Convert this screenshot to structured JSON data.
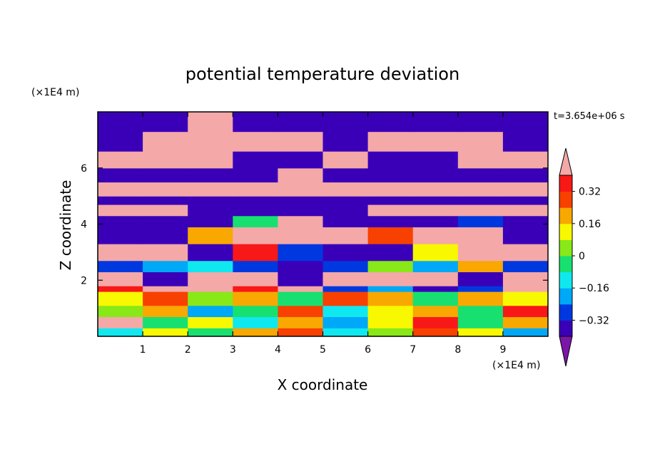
{
  "chart_data": {
    "type": "heatmap",
    "title": "potential temperature deviation",
    "xlabel": "X coordinate",
    "ylabel": "Z coordinate",
    "x_unit": "(×1E4 m)",
    "y_unit": "(×1E4 m)",
    "time_label": "t=3.654e+06 s",
    "xlim": [
      0,
      10
    ],
    "ylim": [
      0,
      8
    ],
    "x_ticks": [
      1,
      2,
      3,
      4,
      5,
      6,
      7,
      8,
      9
    ],
    "y_ticks": [
      2,
      4,
      6
    ],
    "colorbar": {
      "levels": [
        -0.4,
        -0.32,
        -0.24,
        -0.16,
        -0.08,
        0,
        0.08,
        0.16,
        0.24,
        0.32,
        0.4
      ],
      "labels": [
        "0.32",
        "0.16",
        "0",
        "−0.16",
        "−0.32"
      ],
      "label_values": [
        0.32,
        0.16,
        0,
        -0.16,
        -0.32
      ],
      "colors": [
        "#7a16a8",
        "#3a00b8",
        "#0038e0",
        "#00a8f8",
        "#10e8f0",
        "#18e070",
        "#88e818",
        "#f8f800",
        "#f8a800",
        "#f84000",
        "#f81818",
        "#f4a8a8"
      ],
      "extend": "both"
    },
    "bands": [
      {
        "z": [
          0.0,
          0.3
        ],
        "pattern": [
          -0.16,
          0.08,
          -0.08,
          0.16,
          0.24,
          -0.16,
          0.0,
          0.24,
          0.08,
          -0.24
        ]
      },
      {
        "z": [
          0.3,
          0.7
        ],
        "pattern": [
          0.4,
          -0.08,
          0.08,
          -0.16,
          0.16,
          -0.24,
          0.08,
          0.32,
          -0.08,
          0.16
        ]
      },
      {
        "z": [
          0.7,
          1.1
        ],
        "pattern": [
          0.0,
          0.16,
          -0.24,
          -0.08,
          0.24,
          -0.16,
          0.08,
          0.16,
          -0.08,
          0.32
        ]
      },
      {
        "z": [
          1.1,
          1.6
        ],
        "pattern": [
          0.08,
          0.24,
          0.0,
          0.16,
          -0.08,
          0.24,
          0.16,
          -0.08,
          0.16,
          0.08
        ]
      },
      {
        "z": [
          1.6,
          1.8
        ],
        "pattern": [
          0.32,
          0.4,
          0.4,
          0.32,
          0.4,
          -0.32,
          -0.24,
          -0.4,
          -0.32,
          0.4
        ]
      },
      {
        "z": [
          1.8,
          2.3
        ],
        "pattern": [
          0.4,
          -0.4,
          0.4,
          0.4,
          -0.4,
          0.4,
          0.4,
          0.4,
          -0.4,
          0.4
        ]
      },
      {
        "z": [
          2.3,
          2.7
        ],
        "pattern": [
          -0.32,
          -0.24,
          -0.16,
          -0.32,
          -0.4,
          -0.32,
          0.0,
          -0.24,
          0.16,
          -0.32
        ]
      },
      {
        "z": [
          2.7,
          3.3
        ],
        "pattern": [
          0.4,
          0.4,
          -0.4,
          0.32,
          -0.32,
          -0.4,
          -0.4,
          0.08,
          0.4,
          0.4
        ]
      },
      {
        "z": [
          3.3,
          3.9
        ],
        "pattern": [
          -0.4,
          -0.4,
          0.16,
          0.4,
          0.4,
          0.4,
          0.24,
          0.4,
          0.4,
          -0.4
        ]
      },
      {
        "z": [
          3.9,
          4.3
        ],
        "pattern": [
          -0.4,
          -0.4,
          -0.4,
          -0.08,
          0.4,
          -0.4,
          -0.4,
          -0.4,
          -0.32,
          -0.4
        ]
      },
      {
        "z": [
          4.3,
          4.7
        ],
        "pattern": [
          0.4,
          0.4,
          -0.4,
          -0.4,
          -0.4,
          -0.4,
          0.4,
          0.4,
          0.4,
          0.4
        ]
      },
      {
        "z": [
          4.7,
          5.0
        ],
        "pattern": [
          -0.4,
          -0.4,
          -0.4,
          -0.4,
          -0.4,
          -0.4,
          -0.4,
          -0.4,
          -0.4,
          -0.4
        ]
      },
      {
        "z": [
          5.0,
          5.5
        ],
        "pattern": [
          0.4,
          0.4,
          0.4,
          0.4,
          0.4,
          0.4,
          0.4,
          0.4,
          0.4,
          0.4
        ]
      },
      {
        "z": [
          5.5,
          6.0
        ],
        "pattern": [
          -0.4,
          -0.4,
          -0.4,
          -0.4,
          0.4,
          -0.4,
          -0.4,
          -0.4,
          -0.4,
          -0.4
        ]
      },
      {
        "z": [
          6.0,
          6.6
        ],
        "pattern": [
          0.4,
          0.4,
          0.4,
          -0.4,
          -0.4,
          0.4,
          -0.4,
          -0.4,
          0.4,
          0.4
        ]
      },
      {
        "z": [
          6.6,
          7.3
        ],
        "pattern": [
          -0.4,
          0.4,
          0.4,
          0.4,
          0.4,
          -0.4,
          0.4,
          0.4,
          0.4,
          -0.4
        ]
      },
      {
        "z": [
          7.3,
          8.0
        ],
        "pattern": [
          -0.4,
          -0.4,
          0.4,
          -0.4,
          -0.4,
          -0.4,
          -0.4,
          -0.4,
          -0.4,
          -0.4
        ]
      }
    ]
  }
}
